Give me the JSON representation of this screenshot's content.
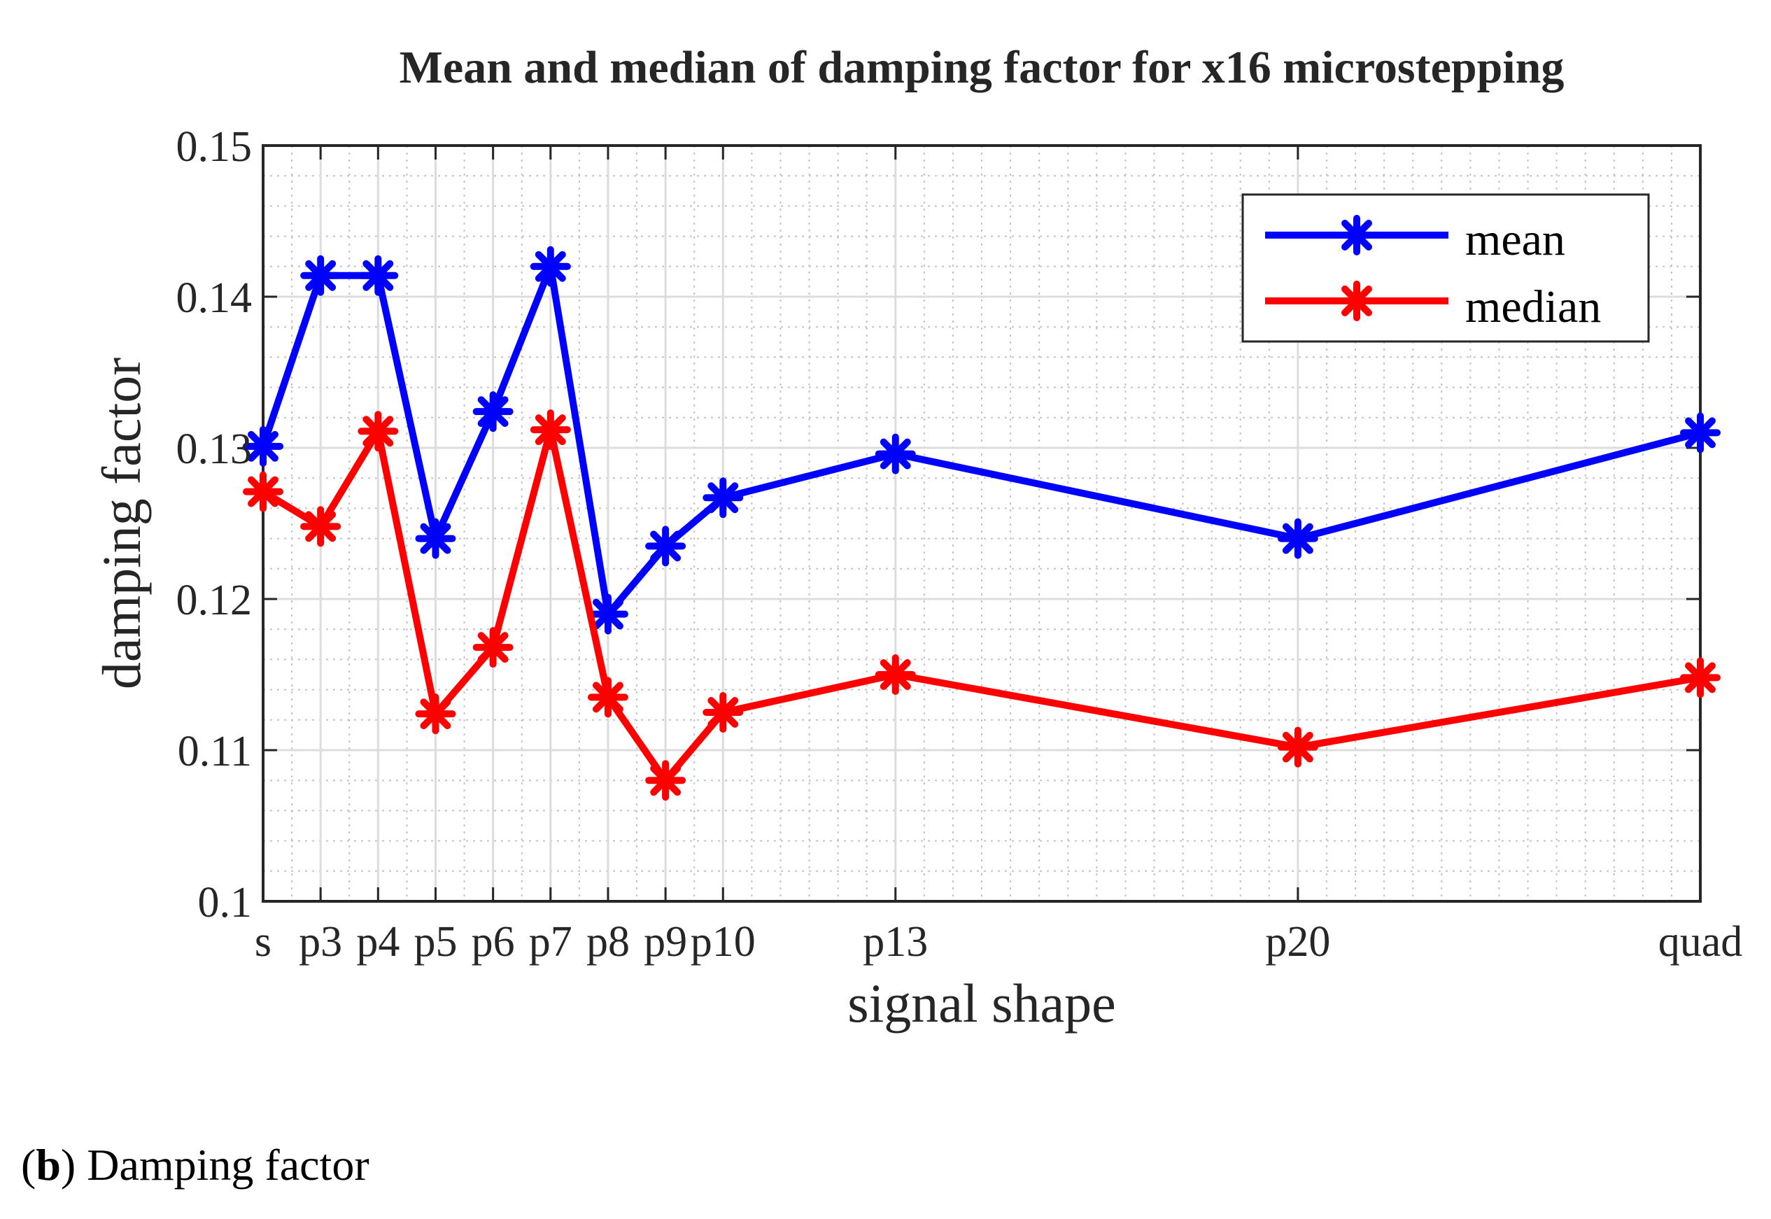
{
  "chart_data": {
    "type": "line",
    "title": "Mean and median of damping factor for x16 microstepping",
    "xlabel": "signal shape",
    "ylabel": "damping factor",
    "categories": [
      "s",
      "p3",
      "p4",
      "p5",
      "p6",
      "p7",
      "p8",
      "p9",
      "p10",
      "p13",
      "p20",
      "quad"
    ],
    "x": [
      1,
      2,
      3,
      4,
      5,
      6,
      7,
      8,
      9,
      12,
      19,
      26
    ],
    "xlim": [
      1,
      26
    ],
    "ylim": [
      0.1,
      0.15
    ],
    "yticks": [
      0.1,
      0.11,
      0.12,
      0.13,
      0.14,
      0.15
    ],
    "ytick_labels": [
      "0.1",
      "0.11",
      "0.12",
      "0.13",
      "0.14",
      "0.15"
    ],
    "grid": true,
    "minor_grid": true,
    "legend_position": "top-right",
    "series": [
      {
        "name": "mean",
        "color": "#0000ff",
        "marker": "asterisk",
        "values": [
          0.1301,
          0.1414,
          0.1414,
          0.124,
          0.1324,
          0.142,
          0.119,
          0.1235,
          0.1267,
          0.1296,
          0.124,
          0.131
        ]
      },
      {
        "name": "median",
        "color": "#ff0000",
        "marker": "asterisk",
        "values": [
          0.1271,
          0.1248,
          0.1311,
          0.1124,
          0.1168,
          0.1312,
          0.1135,
          0.108,
          0.1125,
          0.115,
          0.1102,
          0.1148
        ]
      }
    ]
  },
  "caption": {
    "label": "b",
    "text": " Damping factor"
  }
}
